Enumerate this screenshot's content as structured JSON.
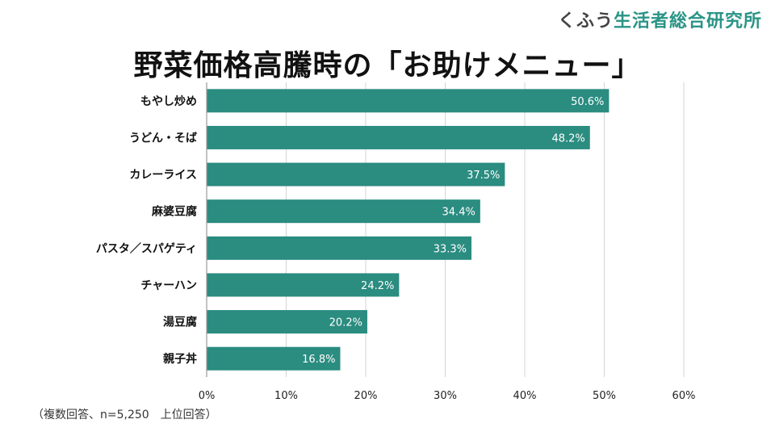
{
  "brand": {
    "part1": "くふう",
    "part2": "生活者総合研究所"
  },
  "title": "野菜価格高騰時の「お助けメニュー」",
  "note": "（複数回答、n=5,250　上位回答）",
  "colors": {
    "bar": "#2b8c80",
    "grid": "#d4d4d4",
    "axis": "#999999",
    "brand_accent": "#2a9486"
  },
  "chart_data": {
    "type": "bar",
    "orientation": "horizontal",
    "title": "野菜価格高騰時の「お助けメニュー」",
    "categories": [
      "もやし炒め",
      "うどん・そば",
      "カレーライス",
      "麻婆豆腐",
      "パスタ／スパゲティ",
      "チャーハン",
      "湯豆腐",
      "親子丼"
    ],
    "values": [
      50.6,
      48.2,
      37.5,
      34.4,
      33.3,
      24.2,
      20.2,
      16.8
    ],
    "value_labels": [
      "50.6%",
      "48.2%",
      "37.5%",
      "34.4%",
      "33.3%",
      "24.2%",
      "20.2%",
      "16.8%"
    ],
    "xlim": [
      0,
      60
    ],
    "xticks": [
      0,
      10,
      20,
      30,
      40,
      50,
      60
    ],
    "xtick_labels": [
      "0%",
      "10%",
      "20%",
      "30%",
      "40%",
      "50%",
      "60%"
    ],
    "xlabel": "",
    "ylabel": "",
    "grid": true
  }
}
